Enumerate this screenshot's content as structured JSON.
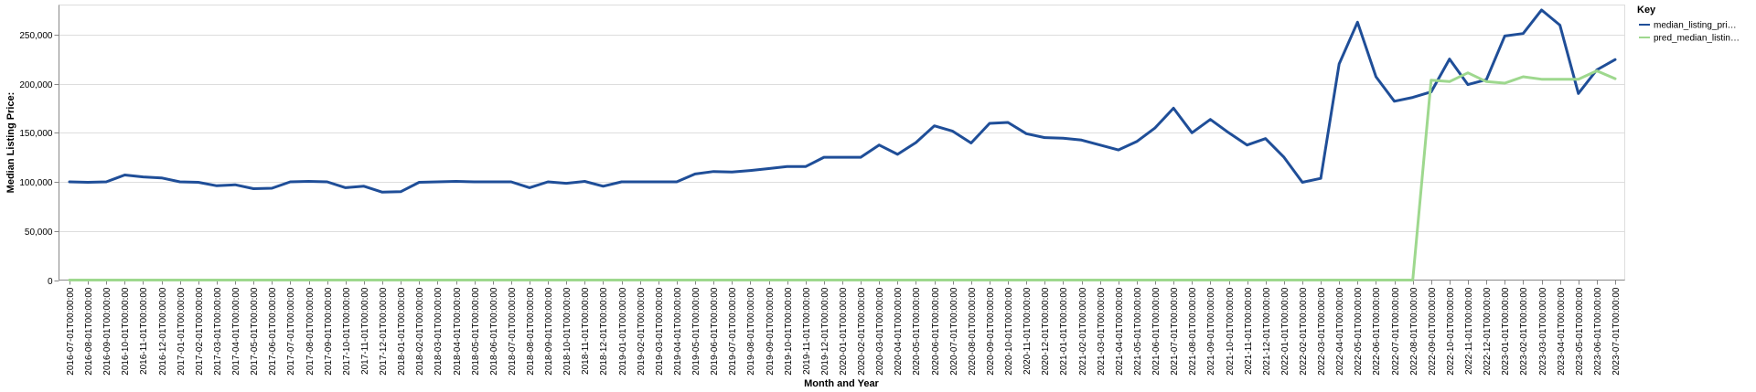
{
  "chart_data": {
    "type": "line",
    "xlabel": "Month and Year",
    "ylabel": "Median Listing Price:",
    "ylim": [
      0,
      280000
    ],
    "yticks": [
      0,
      50000,
      100000,
      150000,
      200000,
      250000
    ],
    "ytick_labels": [
      "0",
      "50,000",
      "100,000",
      "150,000",
      "200,000",
      "250,000"
    ],
    "grid": true,
    "legend": {
      "title": "Key",
      "placement": "top-right"
    },
    "x": [
      "2016-07-01T00:00:00",
      "2016-08-01T00:00:00",
      "2016-09-01T00:00:00",
      "2016-10-01T00:00:00",
      "2016-11-01T00:00:00",
      "2016-12-01T00:00:00",
      "2017-01-01T00:00:00",
      "2017-02-01T00:00:00",
      "2017-03-01T00:00:00",
      "2017-04-01T00:00:00",
      "2017-05-01T00:00:00",
      "2017-06-01T00:00:00",
      "2017-07-01T00:00:00",
      "2017-08-01T00:00:00",
      "2017-09-01T00:00:00",
      "2017-10-01T00:00:00",
      "2017-11-01T00:00:00",
      "2017-12-01T00:00:00",
      "2018-01-01T00:00:00",
      "2018-02-01T00:00:00",
      "2018-03-01T00:00:00",
      "2018-04-01T00:00:00",
      "2018-05-01T00:00:00",
      "2018-06-01T00:00:00",
      "2018-07-01T00:00:00",
      "2018-08-01T00:00:00",
      "2018-09-01T00:00:00",
      "2018-10-01T00:00:00",
      "2018-11-01T00:00:00",
      "2018-12-01T00:00:00",
      "2019-01-01T00:00:00",
      "2019-02-01T00:00:00",
      "2019-03-01T00:00:00",
      "2019-04-01T00:00:00",
      "2019-05-01T00:00:00",
      "2019-06-01T00:00:00",
      "2019-07-01T00:00:00",
      "2019-08-01T00:00:00",
      "2019-09-01T00:00:00",
      "2019-10-01T00:00:00",
      "2019-11-01T00:00:00",
      "2019-12-01T00:00:00",
      "2020-01-01T00:00:00",
      "2020-02-01T00:00:00",
      "2020-03-01T00:00:00",
      "2020-04-01T00:00:00",
      "2020-05-01T00:00:00",
      "2020-06-01T00:00:00",
      "2020-07-01T00:00:00",
      "2020-08-01T00:00:00",
      "2020-09-01T00:00:00",
      "2020-10-01T00:00:00",
      "2020-11-01T00:00:00",
      "2020-12-01T00:00:00",
      "2021-01-01T00:00:00",
      "2021-02-01T00:00:00",
      "2021-03-01T00:00:00",
      "2021-04-01T00:00:00",
      "2021-05-01T00:00:00",
      "2021-06-01T00:00:00",
      "2021-07-01T00:00:00",
      "2021-08-01T00:00:00",
      "2021-09-01T00:00:00",
      "2021-10-01T00:00:00",
      "2021-11-01T00:00:00",
      "2021-12-01T00:00:00",
      "2022-01-01T00:00:00",
      "2022-02-01T00:00:00",
      "2022-03-01T00:00:00",
      "2022-04-01T00:00:00",
      "2022-05-01T00:00:00",
      "2022-06-01T00:00:00",
      "2022-07-01T00:00:00",
      "2022-08-01T00:00:00",
      "2022-09-01T00:00:00",
      "2022-10-01T00:00:00",
      "2022-11-01T00:00:00",
      "2022-12-01T00:00:00",
      "2023-01-01T00:00:00",
      "2023-02-01T00:00:00",
      "2023-03-01T00:00:00",
      "2023-04-01T00:00:00",
      "2023-05-01T00:00:00",
      "2023-06-01T00:00:00",
      "2023-07-01T00:00:00"
    ],
    "x_tick_labels": [
      "2016-07-01T00:00:00",
      "2016-08-01T00:00:00",
      "2016-09-01T00:00:00",
      "2016-10-01T00:00:00",
      "2016-11-01T00:00:00",
      "2016-12-01T00:00:00",
      "2017-01-01T00:00:00",
      "2017-02-01T00:00:00",
      "2017-03-01T00:00:00",
      "2017-04-01T00:00:00",
      "2017-05-01T00:00:00",
      "2017-06-01T00:00:00",
      "2017-07-01T00:00:00",
      "2017-08-01T00:00:00",
      "2017-09-01T00:00:00",
      "2017-10-01T00:00:00",
      "2017-11-01T00:00:00",
      "2017-12-01T00:00:00",
      "2018-01-01T00:00:00",
      "2018-02-01T00:00:00",
      "2018-03-01T00:00:00",
      "2018-04-01T00:00:00",
      "2018-05-01T00:00:00",
      "2018-06-01T00:00:00",
      "2018-07-01T00:00:00",
      "2018-08-01T00:00:00",
      "2018-09-01T00:00:00",
      "2018-10-01T00:00:00",
      "2018-11-01T00:00:00",
      "2018-12-01T00:00:00",
      "2019-01-01T00:00:00",
      "2019-02-01T00:00:00",
      "2019-03-01T00:00:00",
      "2019-04-01T00:00:00",
      "2019-05-01T00:00:00",
      "2019-06-01T00:00:00",
      "2019-07-01T00:00:00",
      "2019-08-01T00:00:00",
      "2019-09-01T00:00:00",
      "2019-10-01T00:00:00",
      "2019-11-01T00:00:00",
      "2019-12-01T00:00:00",
      "2020-01-01T00:00:00",
      "2020-02-01T00:00:00",
      "2020-03-01T00:00:00",
      "2020-04-01T00:00:00",
      "2020-05-01T00:00:00",
      "2020-06-01T00:00:00",
      "2020-07-01T00:00:00",
      "2020-08-01T00:00:00",
      "2020-09-01T00:00:00",
      "2020-10-01T00:00:00",
      "2020-11-01T00:00:00",
      "2020-12-01T00:00:00",
      "2021-01-01T00:00:00",
      "2021-02-01T00:00:00",
      "2021-03-01T00:00:00",
      "2021-04-01T00:00:00",
      "2021-05-01T00:00:00",
      "2021-06-01T00:00:00",
      "2021-07-01T00:00:00",
      "2021-08-01T00:00:00",
      "2021-09-01T00:00:00",
      "2021-10-01T00:00:00",
      "2021-11-01T00:00:00",
      "2021-12-01T00:00:00",
      "2022-01-01T00:00:00",
      "2022-02-01T00:00:00",
      "2022-03-01T00:00:00",
      "2022-04-01T00:00:00",
      "2022-05-01T00:00:00",
      "2022-06-01T00:00:00",
      "2022-07-01T00:00:00",
      "2022-08-01T00:00:00",
      "2022-09-01T00:00:00",
      "2022-10-01T00:00:00",
      "2022-11-01T00:00:00",
      "2022-12-01T00:00:00",
      "2023-01-01T00:00:00",
      "2023-02-01T00:00:00",
      "2023-03-01T00:00:00",
      "2023-04-01T00:00:00",
      "2023-05-01T00:00:00",
      "2023-06-01T00:00:00",
      "2023-07-01T00:00:00"
    ],
    "series": [
      {
        "name": "median_listing_pri…",
        "color": "#1f4e98",
        "values": [
          100000,
          99500,
          100000,
          107000,
          105000,
          104000,
          100000,
          99500,
          96000,
          97000,
          93000,
          93500,
          100000,
          100500,
          100000,
          94000,
          95500,
          89500,
          90000,
          99500,
          100000,
          100500,
          100000,
          100000,
          100000,
          94000,
          100000,
          98500,
          100500,
          95500,
          100000,
          100000,
          100000,
          100000,
          108000,
          110500,
          110000,
          111500,
          113500,
          115500,
          115500,
          125000,
          125000,
          125000,
          137500,
          128000,
          140000,
          157000,
          151500,
          139500,
          159500,
          160500,
          149000,
          145000,
          144500,
          142500,
          137500,
          132500,
          141000,
          155000,
          175000,
          150000,
          163500,
          150000,
          137500,
          144000,
          125000,
          99500,
          103500,
          220000,
          262500,
          207000,
          182000,
          186000,
          191500,
          225000,
          199000,
          204000,
          248500,
          251000,
          275000,
          259500,
          190000,
          214000,
          224500
        ]
      },
      {
        "name": "pred_median_listin…",
        "color": "#9ed88e",
        "values": [
          0,
          0,
          0,
          0,
          0,
          0,
          0,
          0,
          0,
          0,
          0,
          0,
          0,
          0,
          0,
          0,
          0,
          0,
          0,
          0,
          0,
          0,
          0,
          0,
          0,
          0,
          0,
          0,
          0,
          0,
          0,
          0,
          0,
          0,
          0,
          0,
          0,
          0,
          0,
          0,
          0,
          0,
          0,
          0,
          0,
          0,
          0,
          0,
          0,
          0,
          0,
          0,
          0,
          0,
          0,
          0,
          0,
          0,
          0,
          0,
          0,
          0,
          0,
          0,
          0,
          0,
          0,
          0,
          0,
          0,
          0,
          0,
          0,
          0,
          203500,
          202000,
          211000,
          202000,
          200500,
          207000,
          204500,
          204500,
          204500,
          213000,
          205000
        ]
      }
    ]
  }
}
